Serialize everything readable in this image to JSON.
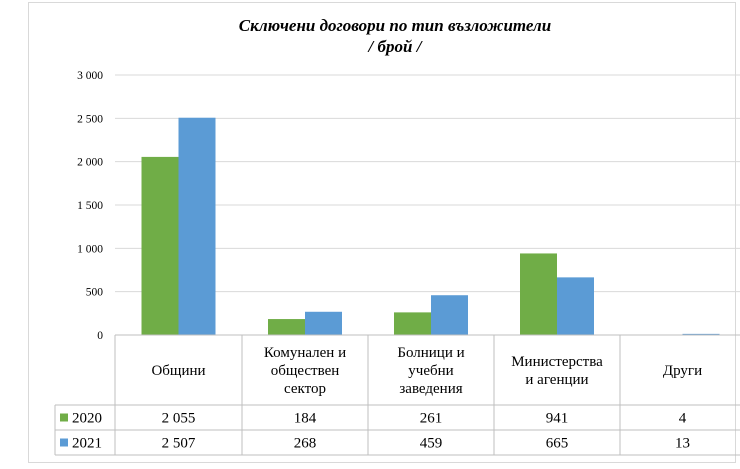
{
  "chart_data": {
    "type": "bar",
    "title": "Сключени договори по тип възложители",
    "subtitle": "/ брой /",
    "categories": [
      [
        "Общини"
      ],
      [
        "Комунален и",
        "обществен",
        "сектор"
      ],
      [
        "Болници и",
        "учебни",
        "заведения"
      ],
      [
        "Министерства",
        "и агенции"
      ],
      [
        "Други"
      ]
    ],
    "series": [
      {
        "name": "2020",
        "color": "#70ad47",
        "values": [
          2055,
          184,
          261,
          941,
          4
        ],
        "labels": [
          "2 055",
          "184",
          "261",
          "941",
          "4"
        ]
      },
      {
        "name": "2021",
        "color": "#5b9bd5",
        "values": [
          2507,
          268,
          459,
          665,
          13
        ],
        "labels": [
          "2 507",
          "268",
          "459",
          "665",
          "13"
        ]
      }
    ],
    "ylim": [
      0,
      3000
    ],
    "yticks": [
      0,
      500,
      1000,
      1500,
      2000,
      2500,
      3000
    ],
    "ytick_labels": [
      "0",
      "500",
      "1 000",
      "1 500",
      "2 000",
      "2 500",
      "3 000"
    ],
    "xlabel": "",
    "ylabel": "",
    "grid": true,
    "legend": "data-table"
  }
}
